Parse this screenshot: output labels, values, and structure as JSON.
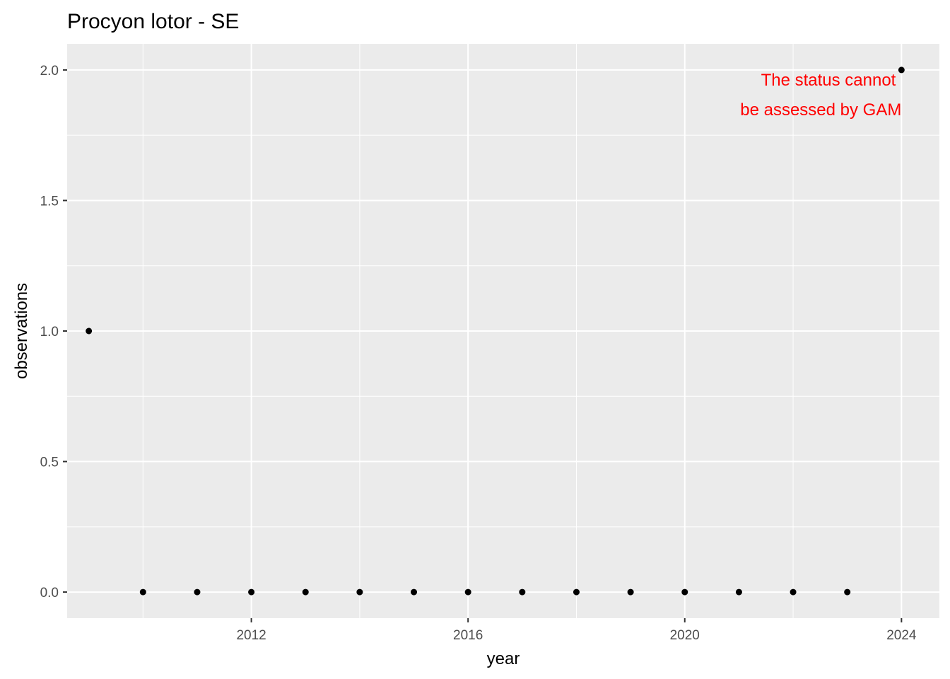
{
  "chart_data": {
    "type": "scatter",
    "title": "Procyon lotor - SE",
    "xlabel": "year",
    "ylabel": "observations",
    "xlim": [
      2008.6,
      2024.7
    ],
    "ylim": [
      -0.1,
      2.1
    ],
    "x_ticks": [
      2012,
      2016,
      2020,
      2024
    ],
    "y_ticks": [
      0.0,
      0.5,
      1.0,
      1.5,
      2.0
    ],
    "y_tick_labels": [
      "0.0",
      "0.5",
      "1.0",
      "1.5",
      "2.0"
    ],
    "grid": true,
    "legend": "none",
    "points": [
      {
        "x": 2009,
        "y": 1
      },
      {
        "x": 2010,
        "y": 0
      },
      {
        "x": 2011,
        "y": 0
      },
      {
        "x": 2012,
        "y": 0
      },
      {
        "x": 2013,
        "y": 0
      },
      {
        "x": 2014,
        "y": 0
      },
      {
        "x": 2015,
        "y": 0
      },
      {
        "x": 2016,
        "y": 0
      },
      {
        "x": 2017,
        "y": 0
      },
      {
        "x": 2018,
        "y": 0
      },
      {
        "x": 2019,
        "y": 0
      },
      {
        "x": 2020,
        "y": 0
      },
      {
        "x": 2021,
        "y": 0
      },
      {
        "x": 2022,
        "y": 0
      },
      {
        "x": 2023,
        "y": 0
      },
      {
        "x": 2024,
        "y": 2
      }
    ],
    "annotation": {
      "lines": [
        "The status cannot",
        "be assessed by GAM"
      ],
      "x": 2024,
      "y": 2.0,
      "color": "#ff0000"
    },
    "colors": {
      "panel": "#ebebeb",
      "grid": "#ffffff",
      "point": "#000000"
    }
  }
}
